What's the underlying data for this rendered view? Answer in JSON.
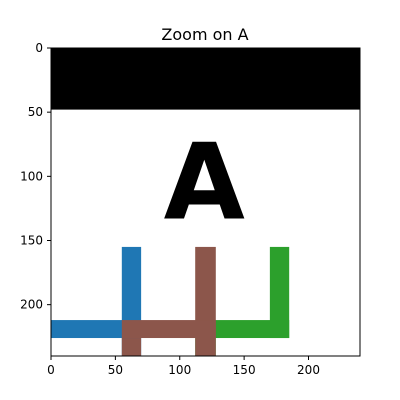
{
  "chart_data": {
    "type": "image",
    "title": "Zoom on A",
    "xlim": [
      0,
      240
    ],
    "ylim": [
      240,
      0
    ],
    "xticks": [
      0,
      50,
      100,
      150,
      200
    ],
    "yticks": [
      0,
      50,
      100,
      150,
      200
    ],
    "image_text": "A",
    "regions": [
      {
        "name": "black-band",
        "color": "#000000",
        "x0": 0,
        "x1": 240,
        "y0": 0,
        "y1": 48
      },
      {
        "name": "blue-vertical",
        "color": "#1f77b4",
        "x0": 55,
        "x1": 70,
        "y0": 155,
        "y1": 240
      },
      {
        "name": "blue-horizontal",
        "color": "#1f77b4",
        "x0": 0,
        "x1": 70,
        "y0": 212,
        "y1": 226
      },
      {
        "name": "green-vertical-right",
        "color": "#2ca02c",
        "x0": 170,
        "x1": 185,
        "y0": 155,
        "y1": 226
      },
      {
        "name": "green-horizontal",
        "color": "#2ca02c",
        "x0": 125,
        "x1": 185,
        "y0": 212,
        "y1": 226
      },
      {
        "name": "green-vertical-low",
        "color": "#2ca02c",
        "x0": 112,
        "x1": 128,
        "y0": 226,
        "y1": 240
      },
      {
        "name": "brown-vertical",
        "color": "#8c564b",
        "x0": 112,
        "x1": 128,
        "y0": 155,
        "y1": 240
      },
      {
        "name": "brown-horizontal",
        "color": "#8c564b",
        "x0": 55,
        "x1": 128,
        "y0": 212,
        "y1": 226
      },
      {
        "name": "brown-vertical-left",
        "color": "#8c564b",
        "x0": 55,
        "x1": 70,
        "y0": 226,
        "y1": 240
      }
    ]
  }
}
